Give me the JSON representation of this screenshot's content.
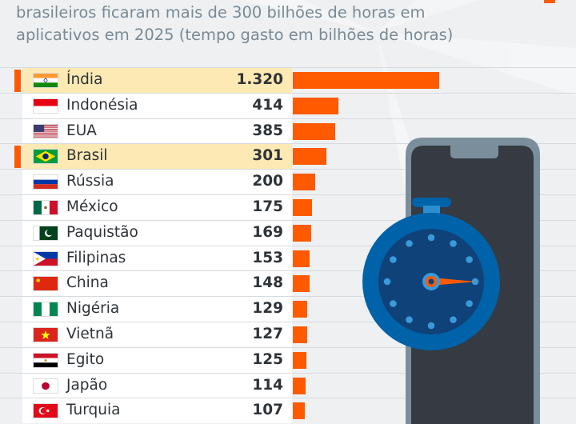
{
  "subtitle": "brasileiros ficaram mais de 300 bilhões de horas em aplicativos em 2025 (tempo gasto em bilhões de horas)",
  "colors": {
    "bar": "#ff5a00",
    "highlight": "#fde9b3",
    "background": "#eef0f2",
    "phone_frame": "#7a8f9b",
    "phone_screen": "#363a42",
    "stopwatch": "#0062a8"
  },
  "chart_data": {
    "type": "bar",
    "orientation": "horizontal",
    "categories": [
      "Índia",
      "Indonésia",
      "EUA",
      "Brasil",
      "Rússia",
      "México",
      "Paquistão",
      "Filipinas",
      "China",
      "Nigéria",
      "Vietnã",
      "Egito",
      "Japão",
      "Turquia"
    ],
    "values": [
      1320,
      414,
      385,
      301,
      200,
      175,
      169,
      153,
      148,
      129,
      127,
      125,
      114,
      107
    ],
    "value_labels": [
      "1.320",
      "414",
      "385",
      "301",
      "200",
      "175",
      "169",
      "153",
      "148",
      "129",
      "127",
      "125",
      "114",
      "107"
    ],
    "highlighted": [
      "Índia",
      "Brasil"
    ],
    "flags": [
      "india",
      "indonesia",
      "usa",
      "brazil",
      "russia",
      "mexico",
      "pakistan",
      "philippines",
      "china",
      "nigeria",
      "vietnam",
      "egypt",
      "japan",
      "turkey"
    ],
    "xlim": [
      0,
      1320
    ]
  }
}
